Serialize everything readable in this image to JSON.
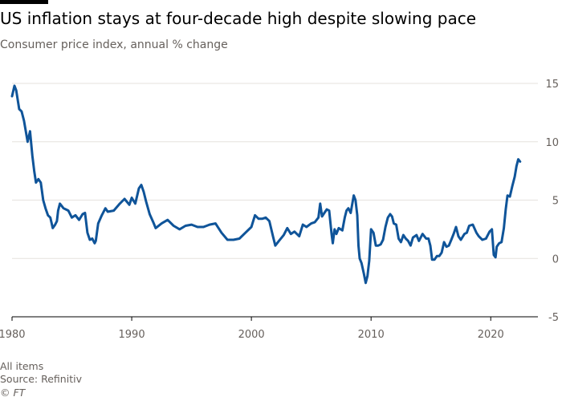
{
  "header": {
    "title": "US inflation stays at four-decade high despite slowing pace",
    "subtitle": "Consumer price index, annual % change"
  },
  "footer": {
    "note": "All items",
    "source": "Source: Refinitiv",
    "copyright": "© FT"
  },
  "colors": {
    "line": "#0f5499",
    "grid": "#e6e2de",
    "text": "#66605c",
    "axis": "#33302e"
  },
  "chart_data": {
    "type": "line",
    "title": "US inflation stays at four-decade high despite slowing pace",
    "subtitle": "Consumer price index, annual % change",
    "xlabel": "",
    "ylabel": "",
    "xlim": [
      1980,
      2022.6
    ],
    "ylim": [
      -5,
      15
    ],
    "x_ticks": [
      "1980",
      "1990",
      "2000",
      "2010",
      "2020"
    ],
    "y_ticks": [
      "15",
      "10",
      "5",
      "0",
      "-5"
    ],
    "y_tick_values": [
      15,
      10,
      5,
      0,
      -5
    ],
    "x_tick_values": [
      1980,
      1990,
      2000,
      2010,
      2020
    ],
    "grid": "horizontal",
    "y_axis_side": "right",
    "series": [
      {
        "x": [
          1980.0,
          1980.2,
          1980.35,
          1980.6,
          1980.8,
          1981.0,
          1981.3,
          1981.5,
          1981.7,
          1981.85,
          1982.0,
          1982.2,
          1982.4,
          1982.6,
          1982.8,
          1983.0,
          1983.2,
          1983.4,
          1983.6,
          1983.75,
          1983.85,
          1984.0,
          1984.3,
          1984.5,
          1984.7,
          1985.0,
          1985.3,
          1985.6,
          1985.9,
          1986.1,
          1986.3,
          1986.5,
          1986.7,
          1986.9,
          1987.0,
          1987.2,
          1987.5,
          1987.8,
          1988.0,
          1988.5,
          1989.0,
          1989.4,
          1989.8,
          1990.0,
          1990.3,
          1990.6,
          1990.8,
          1991.0,
          1991.2,
          1991.5,
          1991.8,
          1992.0,
          1992.5,
          1993.0,
          1993.5,
          1994.0,
          1994.5,
          1995.0,
          1995.5,
          1996.0,
          1996.5,
          1997.0,
          1997.5,
          1998.0,
          1998.5,
          1999.0,
          1999.5,
          2000.0,
          2000.3,
          2000.6,
          2000.9,
          2001.2,
          2001.5,
          2001.8,
          2002.0,
          2002.3,
          2002.7,
          2003.0,
          2003.3,
          2003.6,
          2004.0,
          2004.3,
          2004.6,
          2005.0,
          2005.3,
          2005.6,
          2005.75,
          2005.9,
          2006.1,
          2006.3,
          2006.5,
          2006.7,
          2006.8,
          2006.95,
          2007.1,
          2007.3,
          2007.6,
          2007.8,
          2007.95,
          2008.1,
          2008.3,
          2008.55,
          2008.7,
          2008.85,
          2008.95,
          2009.05,
          2009.2,
          2009.4,
          2009.55,
          2009.7,
          2009.85,
          2010.0,
          2010.2,
          2010.4,
          2010.6,
          2010.8,
          2011.0,
          2011.2,
          2011.4,
          2011.6,
          2011.75,
          2011.9,
          2012.1,
          2012.3,
          2012.5,
          2012.7,
          2012.9,
          2013.1,
          2013.3,
          2013.5,
          2013.8,
          2014.0,
          2014.3,
          2014.6,
          2014.8,
          2014.95,
          2015.1,
          2015.3,
          2015.5,
          2015.7,
          2015.9,
          2016.1,
          2016.3,
          2016.5,
          2016.7,
          2016.9,
          2017.1,
          2017.3,
          2017.5,
          2017.8,
          2018.0,
          2018.2,
          2018.5,
          2018.8,
          2019.0,
          2019.3,
          2019.6,
          2019.9,
          2020.1,
          2020.25,
          2020.4,
          2020.5,
          2020.7,
          2020.9,
          2021.1,
          2021.25,
          2021.4,
          2021.6,
          2021.8,
          2022.0,
          2022.15,
          2022.3,
          2022.45
        ],
        "values": [
          13.9,
          14.8,
          14.4,
          12.8,
          12.6,
          11.8,
          10.0,
          10.9,
          8.8,
          7.5,
          6.5,
          6.8,
          6.5,
          5.0,
          4.3,
          3.7,
          3.5,
          2.6,
          2.9,
          3.2,
          4.1,
          4.7,
          4.3,
          4.2,
          4.1,
          3.5,
          3.7,
          3.3,
          3.8,
          3.9,
          2.2,
          1.6,
          1.7,
          1.3,
          1.5,
          3.0,
          3.7,
          4.3,
          4.0,
          4.1,
          4.7,
          5.1,
          4.6,
          5.2,
          4.7,
          6.0,
          6.3,
          5.7,
          4.9,
          3.8,
          3.1,
          2.6,
          3.0,
          3.3,
          2.8,
          2.5,
          2.8,
          2.9,
          2.7,
          2.7,
          2.9,
          3.0,
          2.2,
          1.6,
          1.6,
          1.7,
          2.2,
          2.7,
          3.7,
          3.4,
          3.4,
          3.5,
          3.2,
          1.9,
          1.1,
          1.5,
          2.0,
          2.6,
          2.1,
          2.3,
          1.9,
          2.9,
          2.7,
          3.0,
          3.1,
          3.5,
          4.7,
          3.6,
          3.9,
          4.2,
          4.1,
          2.1,
          1.3,
          2.5,
          2.1,
          2.6,
          2.4,
          3.5,
          4.1,
          4.3,
          3.9,
          5.4,
          5.0,
          3.7,
          1.1,
          0.0,
          -0.4,
          -1.3,
          -2.1,
          -1.5,
          -0.2,
          2.5,
          2.2,
          1.1,
          1.1,
          1.2,
          1.6,
          2.7,
          3.5,
          3.8,
          3.6,
          3.0,
          2.9,
          1.7,
          1.4,
          2.0,
          1.7,
          1.5,
          1.1,
          1.8,
          2.0,
          1.5,
          2.1,
          1.7,
          1.7,
          1.1,
          -0.1,
          -0.1,
          0.2,
          0.2,
          0.5,
          1.4,
          1.0,
          1.1,
          1.6,
          2.1,
          2.7,
          1.9,
          1.6,
          2.1,
          2.2,
          2.8,
          2.9,
          2.2,
          1.9,
          1.6,
          1.7,
          2.3,
          2.5,
          0.3,
          0.1,
          1.0,
          1.3,
          1.4,
          2.6,
          4.2,
          5.4,
          5.3,
          6.2,
          7.0,
          7.9,
          8.5,
          8.3
        ]
      }
    ]
  }
}
